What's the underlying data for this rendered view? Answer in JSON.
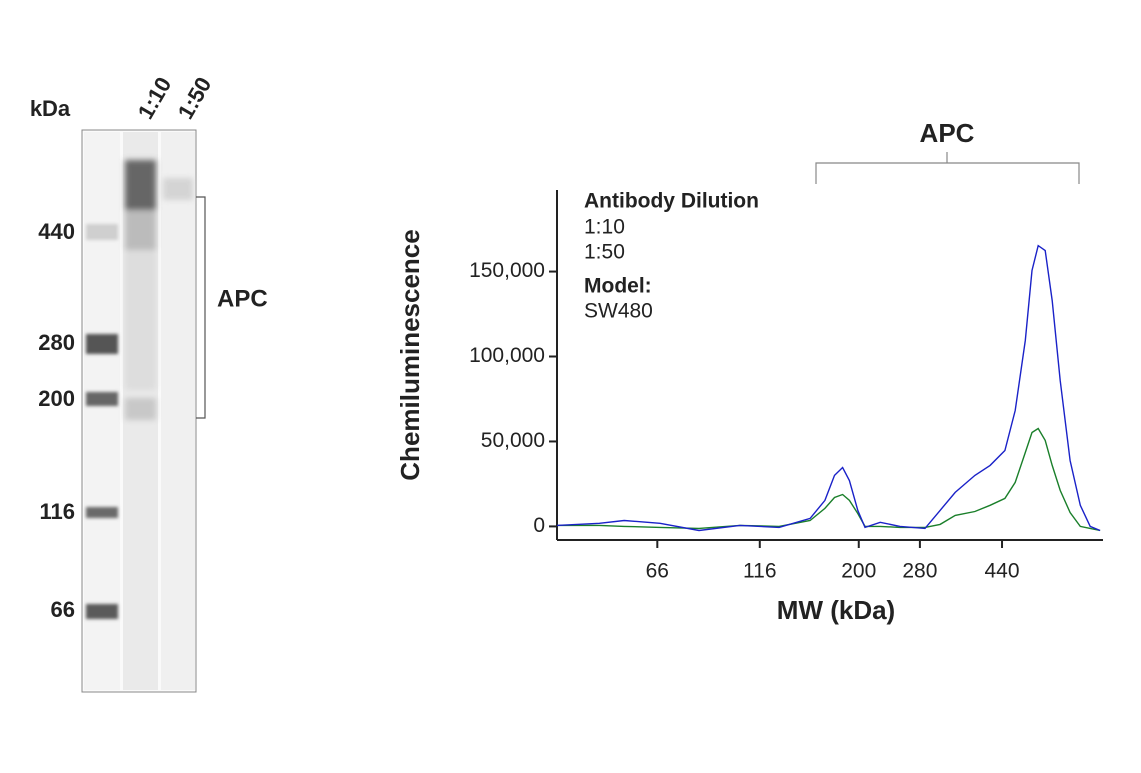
{
  "gel": {
    "unit_label": "kDa",
    "lanes": [
      "1:10",
      "1:50"
    ],
    "markers": [
      440,
      280,
      200,
      116,
      66
    ],
    "bracket_label": "APC"
  },
  "chart_data": {
    "type": "line",
    "annotation": "APC",
    "xlabel": "MW (kDa)",
    "ylabel": "Chemiluminescence",
    "legend_title": "Antibody Dilution",
    "model_label": "Model:",
    "model": "SW480",
    "xscale": "log",
    "xlim": [
      38,
      767
    ],
    "xticks": [
      66,
      116,
      200,
      280,
      440
    ],
    "ylim": [
      -8000,
      198000
    ],
    "yticks": [
      0,
      {
        "value": 50000,
        "label": "50,000"
      },
      {
        "value": 100000,
        "label": "100,000"
      },
      {
        "value": 150000,
        "label": "150,000"
      }
    ],
    "x": [
      38,
      48,
      55,
      67,
      83,
      104,
      129,
      153,
      166,
      175,
      183,
      190,
      199,
      207,
      225,
      251,
      288,
      313,
      340,
      379,
      412,
      447,
      473,
      500,
      519,
      537,
      558,
      580,
      606,
      640,
      677,
      715,
      755
    ],
    "series": [
      {
        "name": "1:10",
        "color": "#1a22c8",
        "values": [
          600,
          1800,
          3500,
          1800,
          -2400,
          600,
          -600,
          4700,
          15300,
          30000,
          34700,
          27000,
          9400,
          -600,
          2400,
          0,
          -1200,
          9400,
          20000,
          30000,
          35900,
          44700,
          68200,
          109400,
          150600,
          165300,
          162400,
          132900,
          85900,
          38800,
          12400,
          0,
          -2400
        ]
      },
      {
        "name": "1:50",
        "color": "#1a7f2a",
        "values": [
          600,
          600,
          0,
          -600,
          -1200,
          600,
          0,
          3500,
          10600,
          17000,
          18800,
          15300,
          7600,
          0,
          0,
          -600,
          -600,
          1200,
          6500,
          8800,
          12400,
          16500,
          25900,
          43500,
          55300,
          57600,
          50600,
          35900,
          21200,
          8200,
          0,
          -1200,
          -2400
        ]
      }
    ]
  }
}
